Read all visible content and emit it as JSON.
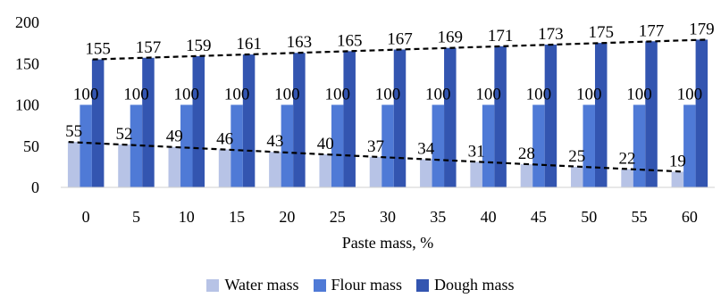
{
  "chart_data": {
    "type": "bar",
    "categories": [
      "0",
      "5",
      "10",
      "15",
      "20",
      "25",
      "30",
      "35",
      "40",
      "45",
      "50",
      "55",
      "60"
    ],
    "series": [
      {
        "name": "Water mass",
        "values": [
          55,
          52,
          49,
          46,
          43,
          40,
          37,
          34,
          31,
          28,
          25,
          22,
          19
        ],
        "color": "#b7c3e6"
      },
      {
        "name": "Flour mass",
        "values": [
          100,
          100,
          100,
          100,
          100,
          100,
          100,
          100,
          100,
          100,
          100,
          100,
          100
        ],
        "color": "#4f7ad6"
      },
      {
        "name": "Dough mass",
        "values": [
          155,
          157,
          159,
          161,
          163,
          165,
          167,
          169,
          171,
          173,
          175,
          177,
          179
        ],
        "color": "#3355b0"
      }
    ],
    "title": "",
    "xlabel": "Paste mass, %",
    "ylabel": "",
    "ylim": [
      0,
      200
    ],
    "yticks": [
      0,
      50,
      100,
      150,
      200
    ],
    "trendlines": [
      "Water mass",
      "Dough mass"
    ],
    "trendline_style": "dashed black linear",
    "grid": false,
    "legend_position": "bottom"
  }
}
